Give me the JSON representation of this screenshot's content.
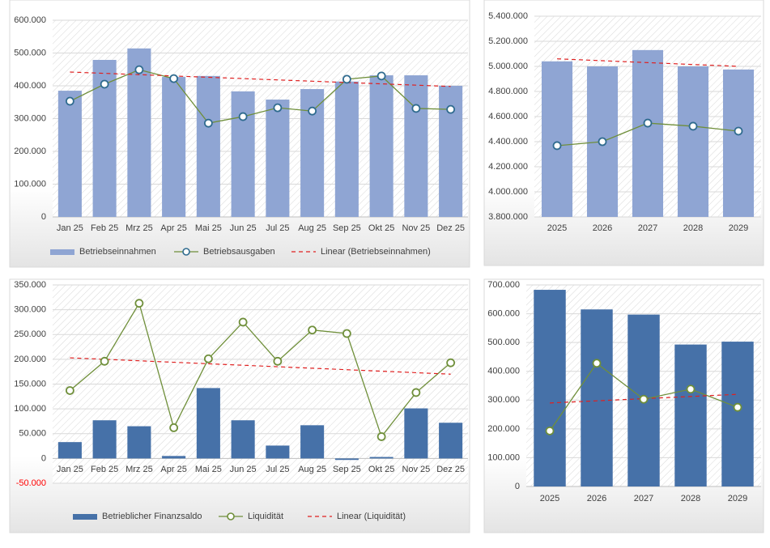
{
  "chart_data": [
    {
      "type": "combo",
      "legend": "bottom",
      "grid": true,
      "categories": [
        "Jan 25",
        "Feb 25",
        "Mrz 25",
        "Apr 25",
        "Mai 25",
        "Jun 25",
        "Jul 25",
        "Aug 25",
        "Sep 25",
        "Okt 25",
        "Nov 25",
        "Dez 25"
      ],
      "ylim": [
        0,
        600000
      ],
      "yticks": [
        0,
        {
          "value": 100000,
          "label": "100.000"
        },
        {
          "value": 200000,
          "label": "200.000"
        },
        {
          "value": 300000,
          "label": "300.000"
        },
        {
          "value": 400000,
          "label": "400.000"
        },
        {
          "value": 500000,
          "label": "500.000"
        },
        {
          "value": 600000,
          "label": "600.000"
        }
      ],
      "series": [
        {
          "name": "Betriebseinnahmen",
          "kind": "bar",
          "color": "#8fa5d3",
          "values": [
            385000,
            479000,
            514000,
            427000,
            430000,
            383000,
            358000,
            390000,
            413000,
            432000,
            432000,
            400000
          ]
        },
        {
          "name": "Betriebsausgaben",
          "kind": "line",
          "marker": true,
          "color": "#6f8f3a",
          "marker_edge": "#2f6b8f",
          "values": [
            353000,
            405000,
            449000,
            422000,
            286000,
            306000,
            333000,
            323000,
            420000,
            430000,
            331000,
            328000
          ]
        },
        {
          "name": "Linear (Betriebseinnahmen)",
          "kind": "trend",
          "color": "#e02020",
          "values": [
            442000,
            438000,
            434000,
            430000,
            426000,
            422000,
            418000,
            414000,
            410000,
            406000,
            402000,
            398000
          ]
        }
      ]
    },
    {
      "type": "combo",
      "grid": true,
      "categories": [
        "2025",
        "2026",
        "2027",
        "2028",
        "2029"
      ],
      "ylim": [
        3800000,
        5400000
      ],
      "yticks": [
        {
          "value": 3800000,
          "label": "3.800.000"
        },
        {
          "value": 4000000,
          "label": "4.000.000"
        },
        {
          "value": 4200000,
          "label": "4.200.000"
        },
        {
          "value": 4400000,
          "label": "4.400.000"
        },
        {
          "value": 4600000,
          "label": "4.600.000"
        },
        {
          "value": 4800000,
          "label": "4.800.000"
        },
        {
          "value": 5000000,
          "label": "5.000.000"
        },
        {
          "value": 5200000,
          "label": "5.200.000"
        },
        {
          "value": 5400000,
          "label": "5.400.000"
        }
      ],
      "series": [
        {
          "kind": "bar",
          "color": "#8fa5d3",
          "values": [
            5040000,
            5000000,
            5130000,
            5000000,
            4975000
          ]
        },
        {
          "kind": "line",
          "marker": true,
          "color": "#6f8f3a",
          "marker_edge": "#2f6b8f",
          "values": [
            4368000,
            4400000,
            4548000,
            4523000,
            4484000
          ]
        },
        {
          "kind": "trend",
          "color": "#e02020",
          "values": [
            5060000,
            5045000,
            5030000,
            5015000,
            5000000
          ]
        }
      ]
    },
    {
      "type": "combo",
      "legend": "bottom",
      "grid": true,
      "categories": [
        "Jan 25",
        "Feb 25",
        "Mrz 25",
        "Apr 25",
        "Mai 25",
        "Jun 25",
        "Jul 25",
        "Aug 25",
        "Sep 25",
        "Okt 25",
        "Nov 25",
        "Dez 25"
      ],
      "ylim": [
        -50000,
        350000
      ],
      "yticks": [
        {
          "value": -50000,
          "label": "-50.000"
        },
        0,
        {
          "value": 50000,
          "label": "50.000"
        },
        {
          "value": 100000,
          "label": "100.000"
        },
        {
          "value": 150000,
          "label": "150.000"
        },
        {
          "value": 200000,
          "label": "200.000"
        },
        {
          "value": 250000,
          "label": "250.000"
        },
        {
          "value": 300000,
          "label": "300.000"
        },
        {
          "value": 350000,
          "label": "350.000"
        }
      ],
      "series": [
        {
          "name": "Betrieblicher Finanzsaldo",
          "kind": "bar",
          "color": "#4671a8",
          "values": [
            33000,
            77000,
            65000,
            5000,
            142000,
            77000,
            26000,
            67000,
            -3000,
            3000,
            101000,
            72000
          ]
        },
        {
          "name": "Liquidität",
          "kind": "line",
          "marker": true,
          "color": "#6f8f3a",
          "marker_edge": "#6f8f3a",
          "values": [
            137000,
            196000,
            313000,
            62000,
            201000,
            275000,
            196000,
            259000,
            252000,
            44000,
            133000,
            193000
          ]
        },
        {
          "name": "Linear (Liquidität)",
          "kind": "trend",
          "color": "#e02020",
          "values": [
            203000,
            200000,
            197000,
            194000,
            191000,
            188000,
            185000,
            182000,
            179000,
            176000,
            173000,
            170000
          ]
        }
      ]
    },
    {
      "type": "combo",
      "grid": true,
      "categories": [
        "2025",
        "2026",
        "2027",
        "2028",
        "2029"
      ],
      "ylim": [
        0,
        700000
      ],
      "yticks": [
        0,
        {
          "value": 100000,
          "label": "100.000"
        },
        {
          "value": 200000,
          "label": "200.000"
        },
        {
          "value": 300000,
          "label": "300.000"
        },
        {
          "value": 400000,
          "label": "400.000"
        },
        {
          "value": 500000,
          "label": "500.000"
        },
        {
          "value": 600000,
          "label": "600.000"
        },
        {
          "value": 700000,
          "label": "700.000"
        }
      ],
      "series": [
        {
          "kind": "bar",
          "color": "#4671a8",
          "values": [
            683000,
            615000,
            597000,
            493000,
            503000
          ]
        },
        {
          "kind": "line",
          "marker": true,
          "color": "#6f8f3a",
          "marker_edge": "#6f8f3a",
          "values": [
            193000,
            428000,
            303000,
            338000,
            275000
          ]
        },
        {
          "kind": "trend",
          "color": "#e02020",
          "values": [
            290000,
            297500,
            305000,
            312500,
            320000
          ]
        }
      ]
    }
  ]
}
